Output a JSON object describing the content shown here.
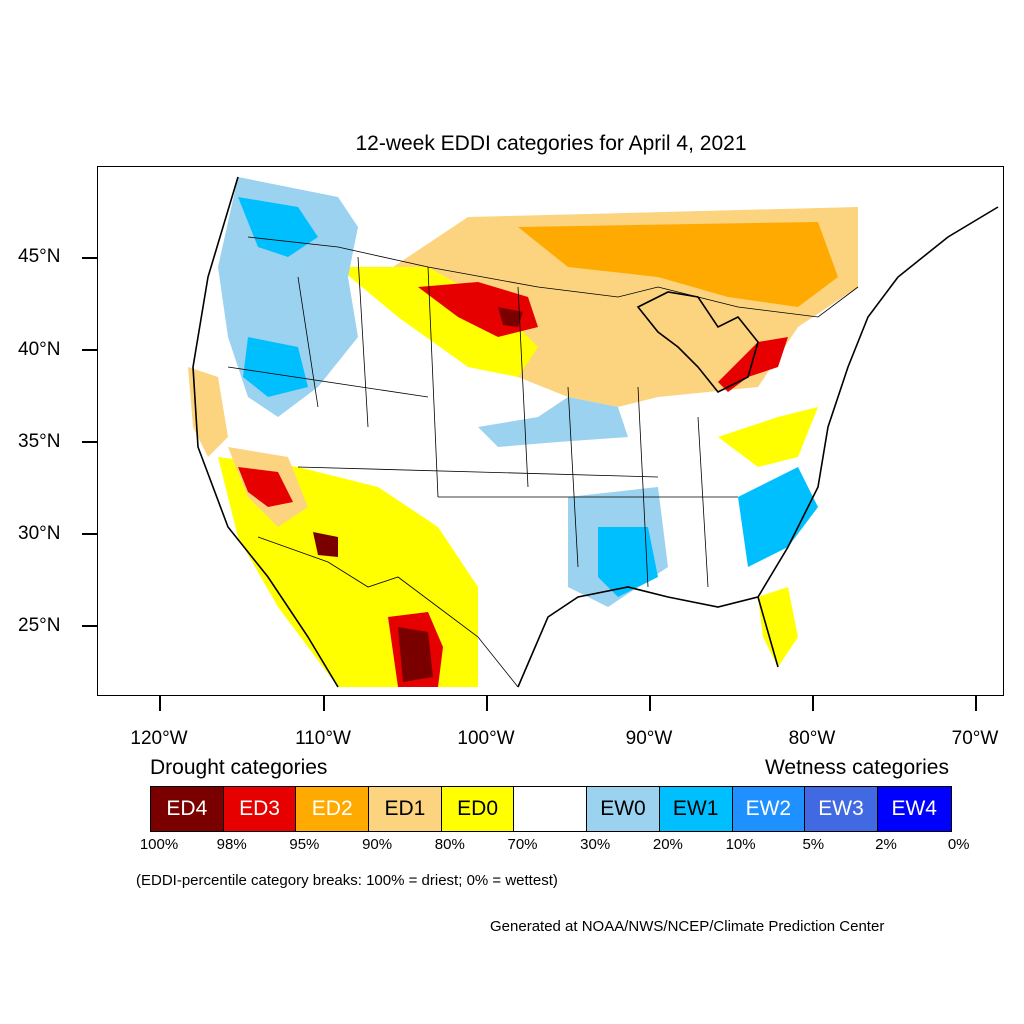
{
  "title": "12-week EDDI categories for April 4, 2021",
  "y_axis": [
    "45°N",
    "40°N",
    "35°N",
    "30°N",
    "25°N"
  ],
  "x_axis": [
    "120°W",
    "110°W",
    "100°W",
    "90°W",
    "80°W",
    "70°W"
  ],
  "legend": {
    "drought_heading": "Drought categories",
    "wetness_heading": "Wetness categories",
    "categories": [
      {
        "label": "ED4",
        "color": "#7a0000",
        "text_color": "#ffffff"
      },
      {
        "label": "ED3",
        "color": "#e60000",
        "text_color": "#ffffff"
      },
      {
        "label": "ED2",
        "color": "#ffaa00",
        "text_color": "#ffffff"
      },
      {
        "label": "ED1",
        "color": "#fcd37f",
        "text_color": "#000000"
      },
      {
        "label": "ED0",
        "color": "#ffff00",
        "text_color": "#000000"
      },
      {
        "label": "",
        "color": "#ffffff",
        "text_color": "#000000"
      },
      {
        "label": "EW0",
        "color": "#9bd2f0",
        "text_color": "#000000"
      },
      {
        "label": "EW1",
        "color": "#00bfff",
        "text_color": "#000000"
      },
      {
        "label": "EW2",
        "color": "#1e90ff",
        "text_color": "#ffffff"
      },
      {
        "label": "EW3",
        "color": "#4169e1",
        "text_color": "#ffffff"
      },
      {
        "label": "EW4",
        "color": "#0000ff",
        "text_color": "#ffffff"
      }
    ],
    "breaks": [
      "100%",
      "98%",
      "95%",
      "90%",
      "80%",
      "70%",
      "30%",
      "20%",
      "10%",
      "5%",
      "2%",
      "0%"
    ]
  },
  "note": "(EDDI-percentile category breaks: 100% = driest; 0% = wettest)",
  "credit": "Generated at NOAA/NWS/NCEP/Climate Prediction Center"
}
